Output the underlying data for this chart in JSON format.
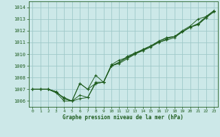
{
  "title": "Graphe pression niveau de la mer (hPa)",
  "bg_color": "#cce8e8",
  "grid_color": "#9ec8c8",
  "line_color": "#1e5c1e",
  "marker_color": "#1e5c1e",
  "xlim": [
    -0.5,
    23.5
  ],
  "ylim": [
    1005.5,
    1014.5
  ],
  "yticks": [
    1006,
    1007,
    1008,
    1009,
    1010,
    1011,
    1012,
    1013,
    1014
  ],
  "xticks": [
    0,
    1,
    2,
    3,
    4,
    5,
    6,
    7,
    8,
    9,
    10,
    11,
    12,
    13,
    14,
    15,
    16,
    17,
    18,
    19,
    20,
    21,
    22,
    23
  ],
  "series": [
    [
      1007.0,
      1007.0,
      1007.0,
      1006.8,
      1006.2,
      1006.0,
      1007.5,
      1007.0,
      1007.5,
      1007.6,
      1009.1,
      1009.5,
      1009.7,
      1010.1,
      1010.3,
      1010.6,
      1011.0,
      1011.2,
      1011.4,
      1011.9,
      1012.3,
      1012.5,
      1013.1,
      1013.6
    ],
    [
      1007.0,
      1007.0,
      1007.0,
      1006.8,
      1006.2,
      1006.0,
      1007.5,
      1007.0,
      1008.2,
      1007.6,
      1009.0,
      1009.3,
      1009.8,
      1010.1,
      1010.4,
      1010.7,
      1011.0,
      1011.3,
      1011.5,
      1012.0,
      1012.4,
      1013.0,
      1013.2,
      1013.7
    ],
    [
      1007.0,
      1007.0,
      1007.0,
      1006.7,
      1006.0,
      1006.0,
      1006.5,
      1006.3,
      1007.6,
      1007.6,
      1009.0,
      1009.2,
      1009.6,
      1010.0,
      1010.3,
      1010.7,
      1011.1,
      1011.4,
      1011.5,
      1011.9,
      1012.3,
      1012.6,
      1013.2,
      1013.7
    ],
    [
      1007.0,
      1007.0,
      1007.0,
      1006.7,
      1006.3,
      1006.0,
      1006.2,
      1006.3,
      1007.5,
      1007.6,
      1009.0,
      1009.3,
      1009.7,
      1010.0,
      1010.4,
      1010.7,
      1011.1,
      1011.4,
      1011.5,
      1011.9,
      1012.3,
      1012.6,
      1013.1,
      1013.7
    ]
  ]
}
